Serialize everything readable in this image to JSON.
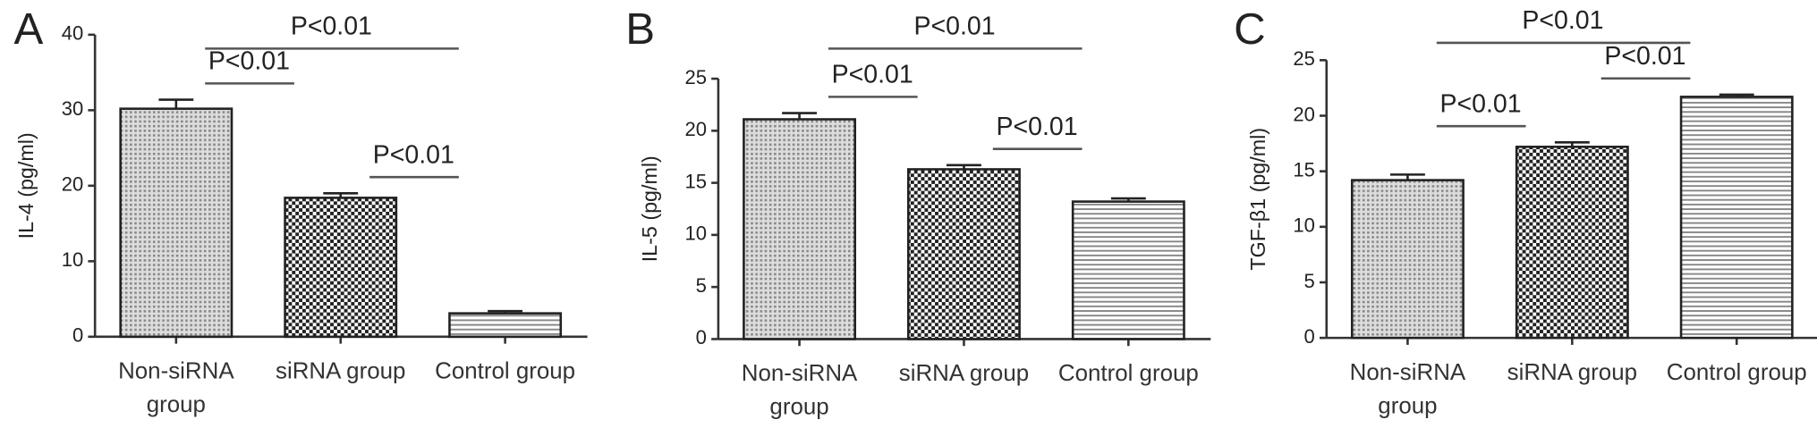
{
  "chart_data": [
    {
      "type": "bar",
      "label": "A",
      "ylabel": "IL-4 (pg/ml)",
      "categories": [
        "Non-siRNA group",
        "siRNA group",
        "Control group"
      ],
      "values": [
        30.2,
        18.4,
        3.1
      ],
      "errors": [
        1.2,
        0.6,
        0.3
      ],
      "ylim": [
        0,
        40
      ],
      "yticks": [
        0,
        10,
        20,
        30,
        40
      ],
      "annotations": [
        {
          "text": "P<0.01",
          "between": [
            0,
            2
          ]
        },
        {
          "text": "P<0.01",
          "between": [
            0,
            1
          ]
        },
        {
          "text": "P<0.01",
          "between": [
            1,
            2
          ]
        }
      ]
    },
    {
      "type": "bar",
      "label": "B",
      "ylabel": "IL-5 (pg/ml)",
      "categories": [
        "Non-siRNA group",
        "siRNA group",
        "Control group"
      ],
      "values": [
        21.1,
        16.3,
        13.2
      ],
      "errors": [
        0.6,
        0.4,
        0.3
      ],
      "ylim": [
        0,
        25
      ],
      "yticks": [
        0,
        5,
        10,
        15,
        20,
        25
      ],
      "annotations": [
        {
          "text": "P<0.01",
          "between": [
            0,
            2
          ]
        },
        {
          "text": "P<0.01",
          "between": [
            0,
            1
          ]
        },
        {
          "text": "P<0.01",
          "between": [
            1,
            2
          ]
        }
      ]
    },
    {
      "type": "bar",
      "label": "C",
      "ylabel": "TGF-β1 (pg/ml)",
      "categories": [
        "Non-siRNA group",
        "siRNA group",
        "Control group"
      ],
      "values": [
        14.2,
        17.2,
        21.7
      ],
      "errors": [
        0.5,
        0.4,
        0.2
      ],
      "ylim": [
        0,
        25
      ],
      "yticks": [
        0,
        5,
        10,
        15,
        20,
        25
      ],
      "annotations": [
        {
          "text": "P<0.01",
          "between": [
            0,
            2
          ]
        },
        {
          "text": "P<0.01",
          "between": [
            0,
            1
          ]
        },
        {
          "text": "P<0.01",
          "between": [
            1,
            2
          ]
        }
      ]
    }
  ]
}
